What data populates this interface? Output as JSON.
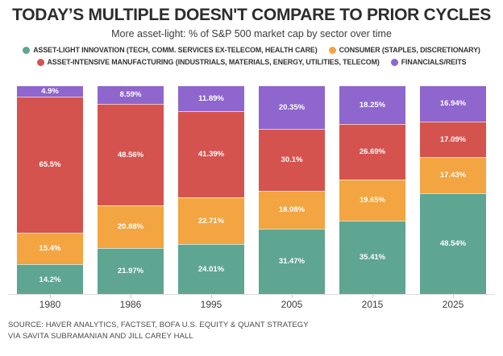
{
  "header": {
    "title": "TODAY’S MULTIPLE DOESN'T COMPARE TO PRIOR CYCLES",
    "subtitle": "More asset-light: % of S&P 500 market cap by sector over time"
  },
  "legend": {
    "rows": [
      [
        {
          "label": "ASSET-LIGHT INNOVATION (TECH, COMM. SERVICES EX-TELECOM, HEALTH CARE)",
          "color": "#5ea592"
        },
        {
          "label": "CONSUMER (STAPLES, DISCRETIONARY)",
          "color": "#f2a541"
        }
      ],
      [
        {
          "label": "ASSET-INTENSIVE MANUFACTURING (INDUSTRIALS, MATERIALS, ENERGY, UTILITIES, TELECOM)",
          "color": "#d5534f"
        },
        {
          "label": "FINANCIALS/REITS",
          "color": "#8e66cd"
        }
      ]
    ]
  },
  "chart_data": {
    "type": "bar",
    "stacked": true,
    "percent": true,
    "title": "More asset-light: % of S&P 500 market cap by sector over time",
    "xlabel": "",
    "ylabel": "% of S&P 500 market cap",
    "ylim": [
      0,
      100
    ],
    "grid": false,
    "legend_position": "top",
    "categories": [
      "1980",
      "1986",
      "1995",
      "2005",
      "2015",
      "2025"
    ],
    "series": [
      {
        "name": "ASSET-LIGHT INNOVATION (TECH, COMM. SERVICES EX-TELECOM, HEALTH CARE)",
        "color": "#5ea592",
        "values": [
          14.2,
          21.97,
          24.01,
          31.47,
          35.41,
          48.54
        ],
        "labels": [
          "14.2%",
          "21.97%",
          "24.01%",
          "31.47%",
          "35.41%",
          "48.54%"
        ]
      },
      {
        "name": "CONSUMER (STAPLES, DISCRETIONARY)",
        "color": "#f2a541",
        "values": [
          15.4,
          20.88,
          22.71,
          18.08,
          19.65,
          17.43
        ],
        "labels": [
          "15.4%",
          "20.88%",
          "22.71%",
          "18.08%",
          "19.65%",
          "17.43%"
        ]
      },
      {
        "name": "ASSET-INTENSIVE MANUFACTURING (INDUSTRIALS, MATERIALS, ENERGY, UTILITIES, TELECOM)",
        "color": "#d5534f",
        "values": [
          65.5,
          48.56,
          41.39,
          30.1,
          26.69,
          17.09
        ],
        "labels": [
          "65.5%",
          "48.56%",
          "41.39%",
          "30.1%",
          "26.69%",
          "17.09%"
        ]
      },
      {
        "name": "FINANCIALS/REITS",
        "color": "#8e66cd",
        "values": [
          4.9,
          8.59,
          11.89,
          20.35,
          18.25,
          16.94
        ],
        "labels": [
          "4.9%",
          "8.59%",
          "11.89%",
          "20.35%",
          "18.25%",
          "16.94%"
        ]
      }
    ]
  },
  "footer": {
    "source_line1": "SOURCE: HAVER ANALYTICS, FACTSET, BOFA U.S. EQUITY & QUANT STRATEGY",
    "source_line2": "VIA SAVITA SUBRAMANIAN AND JILL CAREY HALL"
  }
}
